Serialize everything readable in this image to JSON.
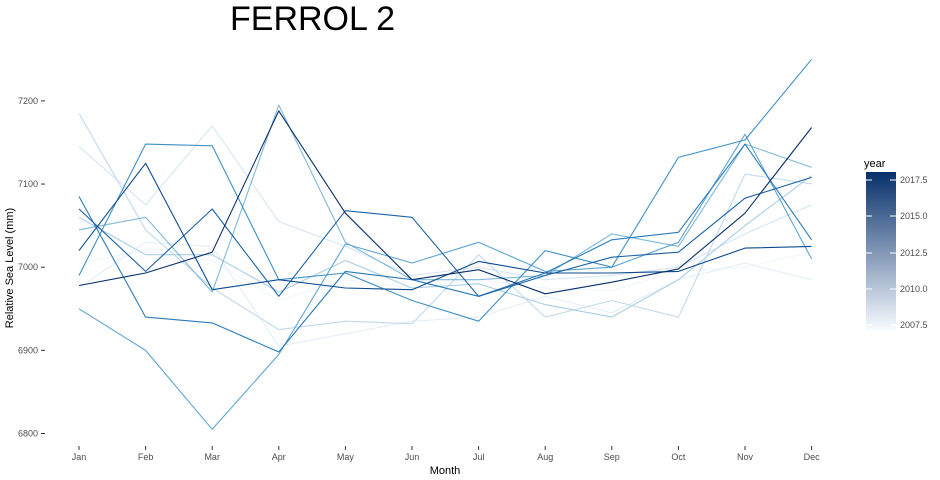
{
  "chart_data": {
    "type": "line",
    "title": "FERROL 2",
    "xlabel": "Month",
    "ylabel": "Relative Sea Level (mm)",
    "categories": [
      "Jan",
      "Feb",
      "Mar",
      "Apr",
      "May",
      "Jun",
      "Jul",
      "Aug",
      "Sep",
      "Oct",
      "Nov",
      "Dec"
    ],
    "ylim": [
      6780,
      7250
    ],
    "yticks": [
      6800,
      6900,
      7000,
      7100,
      7200
    ],
    "grid": false,
    "legend": {
      "title": "year",
      "position": "right",
      "ticks": [
        "2017.5",
        "2015.0",
        "2012.5",
        "2010.0",
        "2007.5"
      ],
      "color_low": "#f7fbff",
      "color_high": "#08306b"
    },
    "series": [
      {
        "color": "#f0f6fd",
        "values": [
          7005,
          7020,
          7008,
          6960,
          6985,
          6975,
          6985,
          6975,
          6972,
          6995,
          7000,
          7018
        ]
      },
      {
        "color": "#e3eef9",
        "values": [
          6975,
          7030,
          7025,
          6905,
          6920,
          6935,
          6940,
          6965,
          6945,
          6985,
          7005,
          6985
        ]
      },
      {
        "color": "#d5e5f4",
        "values": [
          7145,
          7075,
          7170,
          7055,
          7025,
          6990,
          7000,
          6985,
          6990,
          7000,
          7040,
          7075
        ]
      },
      {
        "color": "#c2d9ee",
        "values": [
          7185,
          7045,
          6975,
          6925,
          6935,
          6932,
          7015,
          6940,
          6960,
          6940,
          7112,
          7100
        ]
      },
      {
        "color": "#a9cee4",
        "values": [
          7060,
          7015,
          7015,
          6970,
          7008,
          6975,
          6980,
          6955,
          6940,
          6985,
          7050,
          7110
        ]
      },
      {
        "color": "#7fb8da",
        "values": [
          7045,
          7060,
          6970,
          7195,
          7030,
          6985,
          6985,
          6990,
          7040,
          7025,
          7148,
          7120
        ]
      },
      {
        "color": "#5da5d2",
        "values": [
          6950,
          6900,
          6805,
          6895,
          7028,
          7005,
          7030,
          6995,
          7000,
          7030,
          7160,
          7010
        ]
      },
      {
        "color": "#3f8fc5",
        "values": [
          6990,
          7148,
          7146,
          6985,
          6993,
          6960,
          6935,
          7020,
          7000,
          7132,
          7153,
          7250
        ]
      },
      {
        "color": "#2a7ab9",
        "values": [
          7085,
          6940,
          6933,
          6898,
          6995,
          6985,
          6965,
          6993,
          7033,
          7042,
          7148,
          7033
        ]
      },
      {
        "color": "#1b62a5",
        "values": [
          7070,
          6995,
          7070,
          6965,
          7068,
          7060,
          6965,
          6990,
          7012,
          7018,
          7083,
          7108
        ]
      },
      {
        "color": "#0c4a8f",
        "values": [
          7020,
          7125,
          6973,
          6985,
          6975,
          6973,
          7007,
          6993,
          6993,
          6995,
          7023,
          7025
        ]
      },
      {
        "color": "#08306b",
        "values": [
          6978,
          6993,
          7018,
          7188,
          7065,
          6985,
          6997,
          6968,
          6982,
          6998,
          7065,
          7168
        ]
      }
    ]
  }
}
